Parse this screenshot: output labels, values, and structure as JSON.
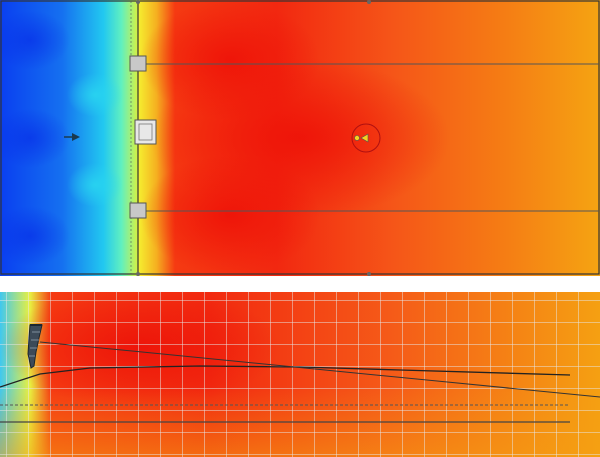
{
  "app": {
    "description_free": true
  },
  "colors": {
    "cold_deep": "#0a3ff0",
    "cold_mid": "#1a8cf0",
    "cyan": "#20e0f0",
    "yellow": "#f2f230",
    "hot_red": "#f21e0f",
    "red_orange": "#f5501a",
    "orange": "#f5a012",
    "grid_line": "#d8d8d8",
    "outline": "#444444"
  },
  "plan_view": {
    "icons": [
      "speaker-icon",
      "arrow-right-icon",
      "listener-icon",
      "stage-node-icon"
    ]
  },
  "side_view": {
    "icons": [
      "speaker-array-icon"
    ]
  }
}
